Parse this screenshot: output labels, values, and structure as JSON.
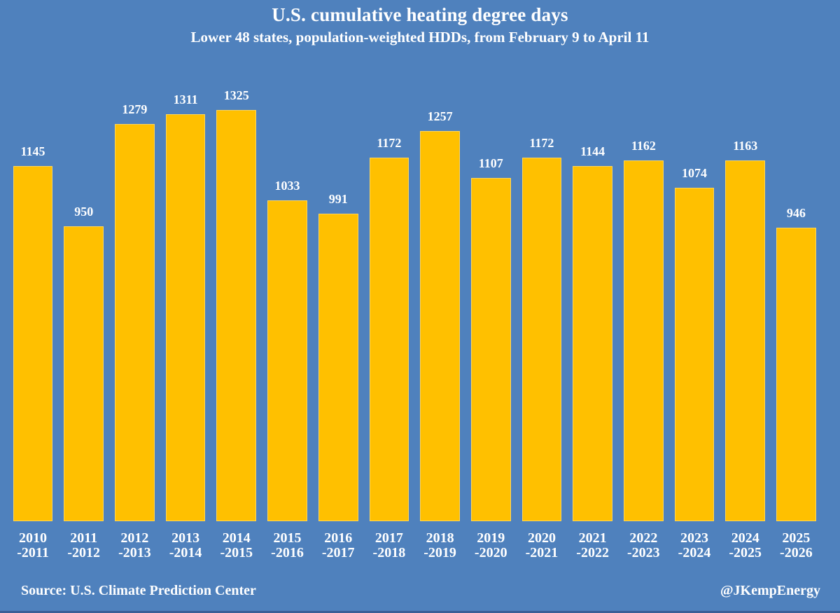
{
  "chart_data": {
    "type": "bar",
    "title": "U.S. cumulative heating degree days",
    "subtitle": "Lower 48 states, population-weighted HDDs, from February 9 to April 11",
    "categories": [
      "2010\n-2011",
      "2011\n-2012",
      "2012\n-2013",
      "2013\n-2014",
      "2014\n-2015",
      "2015\n-2016",
      "2016\n-2017",
      "2017\n-2018",
      "2018\n-2019",
      "2019\n-2020",
      "2020\n-2021",
      "2021\n-2022",
      "2022\n-2023",
      "2023\n-2024",
      "2024\n-2025",
      "2025\n-2026"
    ],
    "values": [
      1145,
      950,
      1279,
      1311,
      1325,
      1033,
      991,
      1172,
      1257,
      1107,
      1172,
      1144,
      1162,
      1074,
      1163,
      946
    ],
    "xlabel": "",
    "ylabel": "",
    "ylim": [
      0,
      1325
    ],
    "grid": false,
    "legend": false,
    "data_labels": true,
    "bar_color": "#FFC000",
    "background_color": "#4F81BD",
    "text_color": "#FFFFFF",
    "bottom_strip_color": "#3A5F96"
  },
  "footer": {
    "source": "Source: U.S. Climate Prediction Center",
    "handle": "@JKempEnergy"
  }
}
